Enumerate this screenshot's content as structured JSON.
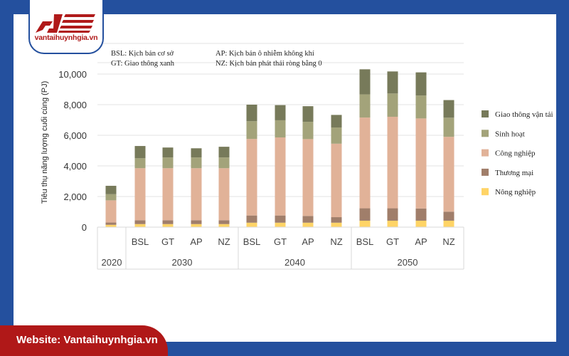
{
  "brand": {
    "logo_text": "vantaihuynhgia.vn",
    "footer": "Website: Vantaihuynhgia.vn",
    "colors": {
      "blue": "#24509e",
      "red": "#b01818"
    }
  },
  "notes": [
    "BSL: Kịch bản cơ sở",
    "GT: Giao thông xanh",
    "AP: Kịch bản ô nhiễm không khí",
    "NZ: Kịch bản phát thải ròng bằng 0"
  ],
  "chart_data": {
    "type": "bar",
    "stacked": true,
    "title": "",
    "ylabel": "Tiêu thụ năng lượng cuối cùng (PJ)",
    "xlabel": "",
    "ylim": [
      0,
      10000
    ],
    "yticks": [
      "0",
      "2,000",
      "4,000",
      "6,000",
      "8,000",
      "10,000"
    ],
    "ytick_values": [
      0,
      2000,
      4000,
      6000,
      8000,
      10000
    ],
    "grid": true,
    "legend_position": "right",
    "groups": [
      {
        "label": "2020",
        "categories": [
          ""
        ]
      },
      {
        "label": "2030",
        "categories": [
          "BSL",
          "GT",
          "AP",
          "NZ"
        ]
      },
      {
        "label": "2040",
        "categories": [
          "BSL",
          "GT",
          "AP",
          "NZ"
        ]
      },
      {
        "label": "2050",
        "categories": [
          "BSL",
          "GT",
          "AP",
          "NZ"
        ]
      }
    ],
    "series": [
      {
        "name": "Nông nghiệp",
        "color": "#ffd466",
        "values": [
          150,
          200,
          200,
          200,
          200,
          290,
          290,
          290,
          290,
          420,
          420,
          420,
          420
        ]
      },
      {
        "name": "Thương mại",
        "color": "#a07e6a",
        "values": [
          150,
          250,
          250,
          250,
          250,
          470,
          470,
          440,
          360,
          810,
          810,
          800,
          590
        ]
      },
      {
        "name": "Công nghiệp",
        "color": "#e1b298",
        "values": [
          1450,
          3400,
          3400,
          3400,
          3400,
          5000,
          5100,
          5020,
          4800,
          5930,
          5980,
          5880,
          4890
        ]
      },
      {
        "name": "Sinh hoạt",
        "color": "#a3a37a",
        "values": [
          400,
          650,
          700,
          700,
          700,
          1160,
          1120,
          1130,
          1060,
          1510,
          1520,
          1500,
          1250
        ]
      },
      {
        "name": "Giao thông vận tải",
        "color": "#777a5a",
        "values": [
          550,
          800,
          650,
          600,
          700,
          1080,
          990,
          1020,
          820,
          1640,
          1440,
          1510,
          1150
        ]
      }
    ]
  }
}
